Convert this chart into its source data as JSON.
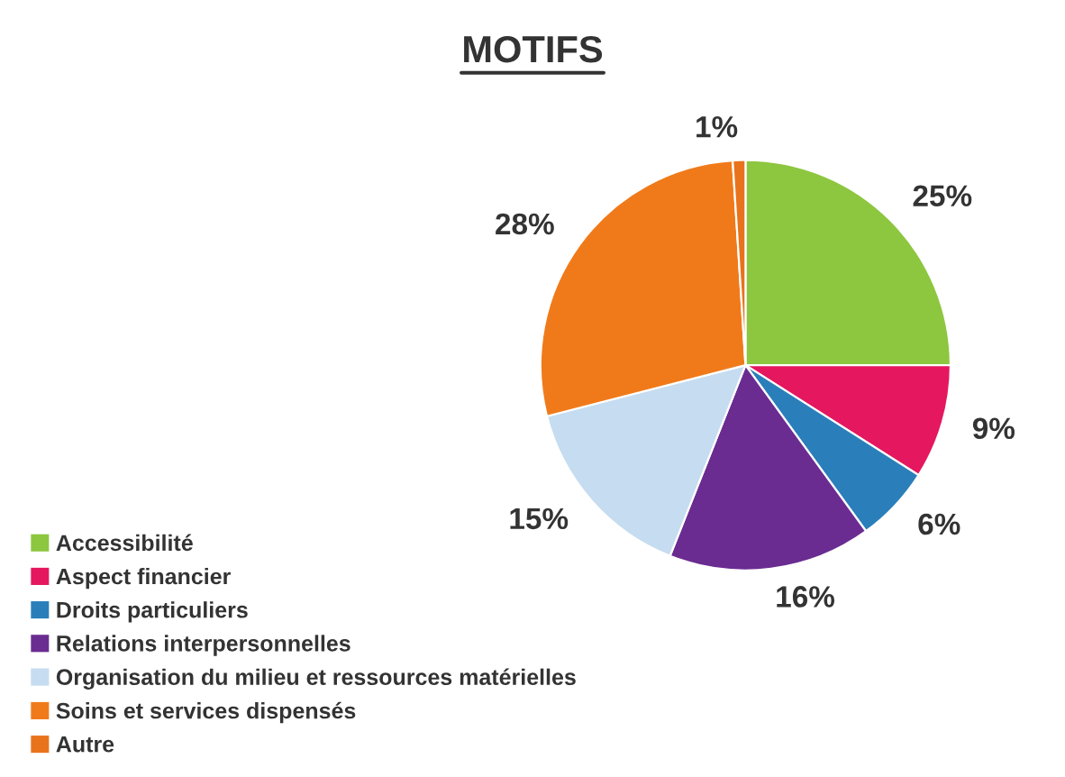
{
  "chart_data": {
    "type": "pie",
    "title": "MOTIFS",
    "categories": [
      "Accessibilité",
      "Aspect financier",
      "Droits particuliers",
      "Relations interpersonnelles",
      "Organisation du milieu et ressources matérielles",
      "Soins et services dispensés",
      "Autre"
    ],
    "values": [
      25,
      9,
      6,
      16,
      15,
      28,
      1
    ],
    "colors": [
      "#8dc63f",
      "#e5175f",
      "#2a7fba",
      "#6a2c91",
      "#c6dcf0",
      "#f07a1a",
      "#e8731c"
    ],
    "value_labels": [
      "25%",
      "9%",
      "6%",
      "16%",
      "15%",
      "28%",
      "1%"
    ],
    "legend": "bottom left"
  }
}
